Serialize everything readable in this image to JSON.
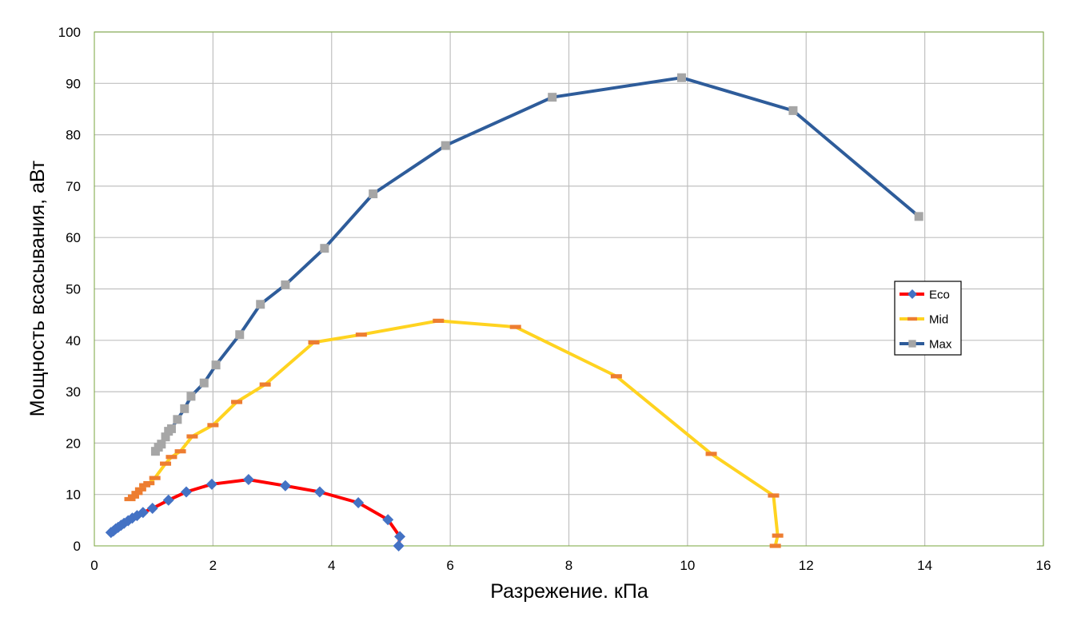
{
  "chart_data": {
    "type": "line",
    "title": "",
    "xlabel": "Разрежение. кПа",
    "ylabel": "Мощность всасывания, аВт",
    "xlim": [
      0,
      16
    ],
    "ylim": [
      0,
      100
    ],
    "xticks": [
      0,
      2,
      4,
      6,
      8,
      10,
      12,
      14,
      16
    ],
    "yticks": [
      0,
      10,
      20,
      30,
      40,
      50,
      60,
      70,
      80,
      90,
      100
    ],
    "grid": true,
    "legend_position": "right",
    "series": [
      {
        "name": "Eco",
        "line_color": "#ff0000",
        "marker_color": "#4472c4",
        "marker": "diamond",
        "x": [
          0.28,
          0.32,
          0.36,
          0.4,
          0.45,
          0.5,
          0.57,
          0.64,
          0.72,
          0.82,
          0.98,
          1.25,
          1.55,
          1.98,
          2.6,
          3.22,
          3.8,
          4.45,
          4.95,
          5.15,
          5.13
        ],
        "y": [
          2.6,
          2.9,
          3.3,
          3.6,
          4.0,
          4.4,
          4.9,
          5.4,
          5.9,
          6.5,
          7.3,
          8.9,
          10.5,
          12.0,
          12.9,
          11.7,
          10.5,
          8.4,
          5.1,
          1.8,
          0.0
        ]
      },
      {
        "name": "Mid",
        "line_color": "#ffd320",
        "marker_color": "#ed7d31",
        "marker": "dash",
        "x": [
          0.6,
          0.66,
          0.72,
          0.78,
          0.85,
          0.92,
          1.02,
          1.2,
          1.3,
          1.45,
          1.65,
          2.0,
          2.4,
          2.88,
          3.7,
          4.5,
          5.8,
          7.1,
          8.8,
          10.4,
          11.45,
          11.52,
          11.48
        ],
        "y": [
          9.1,
          9.6,
          10.3,
          11.0,
          11.8,
          12.2,
          13.2,
          16.0,
          17.3,
          18.4,
          21.3,
          23.5,
          28.0,
          31.4,
          39.6,
          41.1,
          43.8,
          42.6,
          33.0,
          17.9,
          9.8,
          2.0,
          0.0
        ]
      },
      {
        "name": "Max",
        "line_color": "#2e5c9a",
        "marker_color": "#a6a6a6",
        "marker": "square",
        "x": [
          1.03,
          1.08,
          1.13,
          1.2,
          1.25,
          1.3,
          1.4,
          1.52,
          1.63,
          1.85,
          2.05,
          2.45,
          2.8,
          3.22,
          3.88,
          4.7,
          5.92,
          7.72,
          9.9,
          11.78,
          13.9
        ],
        "y": [
          18.4,
          19.2,
          19.8,
          21.2,
          22.3,
          22.8,
          24.6,
          26.7,
          29.1,
          31.7,
          35.2,
          41.1,
          47.0,
          50.8,
          57.9,
          68.5,
          77.9,
          87.3,
          91.1,
          84.7,
          64.1
        ]
      }
    ]
  }
}
